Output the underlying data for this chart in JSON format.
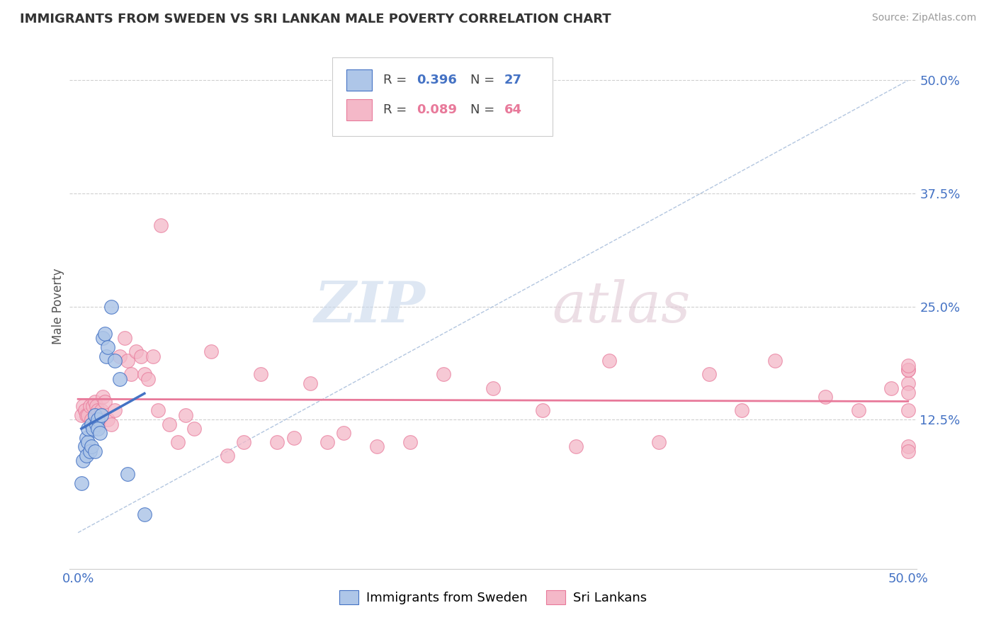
{
  "title": "IMMIGRANTS FROM SWEDEN VS SRI LANKAN MALE POVERTY CORRELATION CHART",
  "source": "Source: ZipAtlas.com",
  "ylabel": "Male Poverty",
  "color_sweden": "#aec6e8",
  "color_srilanka": "#f4b8c8",
  "color_sweden_edge": "#4472c4",
  "color_srilanka_edge": "#e8799a",
  "color_sweden_line": "#4472c4",
  "color_srilanka_line": "#e8799a",
  "color_diag_line": "#a0b8d8",
  "legend_r1": "0.396",
  "legend_n1": "27",
  "legend_r2": "0.089",
  "legend_n2": "64",
  "sweden_x": [
    0.002,
    0.003,
    0.004,
    0.005,
    0.005,
    0.006,
    0.006,
    0.007,
    0.008,
    0.008,
    0.009,
    0.01,
    0.01,
    0.011,
    0.012,
    0.012,
    0.013,
    0.014,
    0.015,
    0.016,
    0.017,
    0.018,
    0.02,
    0.022,
    0.025,
    0.03,
    0.04
  ],
  "sweden_y": [
    0.055,
    0.08,
    0.095,
    0.105,
    0.085,
    0.1,
    0.115,
    0.09,
    0.095,
    0.12,
    0.115,
    0.13,
    0.09,
    0.12,
    0.125,
    0.115,
    0.11,
    0.13,
    0.215,
    0.22,
    0.195,
    0.205,
    0.25,
    0.19,
    0.17,
    0.065,
    0.02
  ],
  "srilanka_x": [
    0.002,
    0.003,
    0.004,
    0.005,
    0.006,
    0.007,
    0.008,
    0.009,
    0.01,
    0.011,
    0.012,
    0.013,
    0.014,
    0.015,
    0.016,
    0.018,
    0.02,
    0.022,
    0.025,
    0.028,
    0.03,
    0.032,
    0.035,
    0.038,
    0.04,
    0.042,
    0.045,
    0.048,
    0.05,
    0.055,
    0.06,
    0.065,
    0.07,
    0.08,
    0.09,
    0.1,
    0.11,
    0.12,
    0.13,
    0.14,
    0.15,
    0.16,
    0.18,
    0.2,
    0.22,
    0.25,
    0.28,
    0.3,
    0.32,
    0.35,
    0.38,
    0.4,
    0.42,
    0.45,
    0.47,
    0.49,
    0.5,
    0.5,
    0.5,
    0.5,
    0.5,
    0.5,
    0.5,
    0.5
  ],
  "srilanka_y": [
    0.13,
    0.14,
    0.135,
    0.13,
    0.13,
    0.14,
    0.125,
    0.14,
    0.145,
    0.14,
    0.135,
    0.125,
    0.135,
    0.15,
    0.145,
    0.125,
    0.12,
    0.135,
    0.195,
    0.215,
    0.19,
    0.175,
    0.2,
    0.195,
    0.175,
    0.17,
    0.195,
    0.135,
    0.34,
    0.12,
    0.1,
    0.13,
    0.115,
    0.2,
    0.085,
    0.1,
    0.175,
    0.1,
    0.105,
    0.165,
    0.1,
    0.11,
    0.095,
    0.1,
    0.175,
    0.16,
    0.135,
    0.095,
    0.19,
    0.1,
    0.175,
    0.135,
    0.19,
    0.15,
    0.135,
    0.16,
    0.165,
    0.135,
    0.095,
    0.18,
    0.09,
    0.18,
    0.155,
    0.185
  ],
  "xlim": [
    0.0,
    0.5
  ],
  "ylim": [
    0.0,
    0.5
  ],
  "yticks": [
    0.125,
    0.25,
    0.375,
    0.5
  ],
  "ytick_labels": [
    "12.5%",
    "25.0%",
    "37.5%",
    "50.0%"
  ],
  "xticks": [
    0.0,
    0.5
  ],
  "xtick_labels": [
    "0.0%",
    "50.0%"
  ],
  "tick_color": "#4472c4",
  "grid_color": "#d0d0d0"
}
